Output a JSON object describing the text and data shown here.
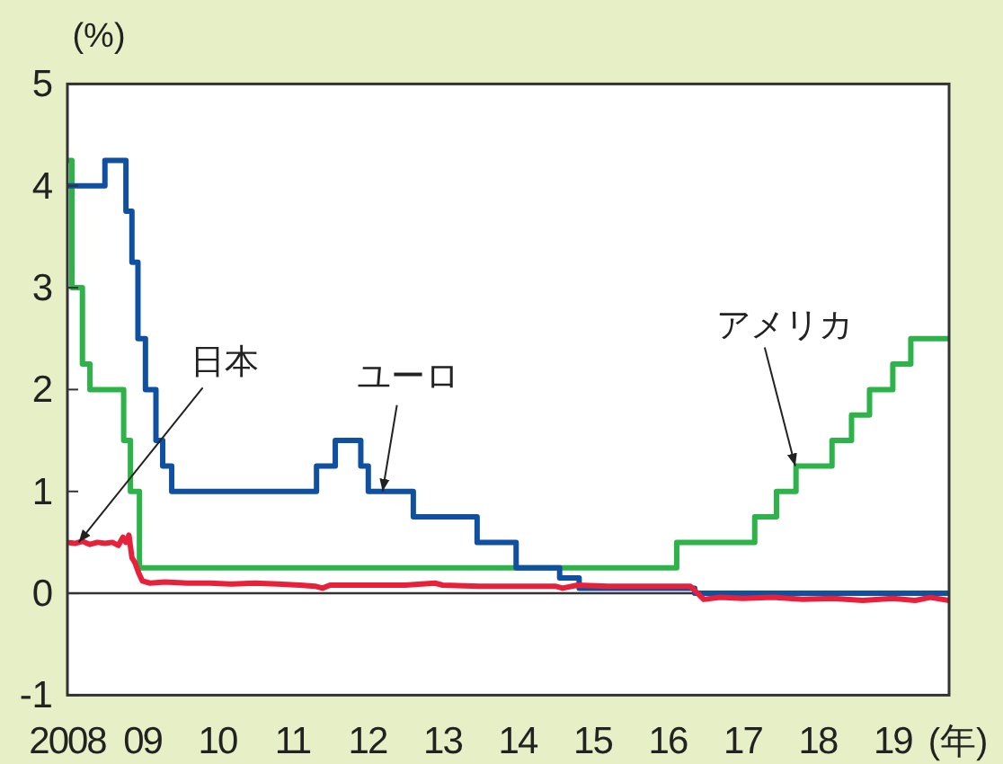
{
  "chart_data": {
    "type": "line",
    "ylabel": "(%)",
    "xlabel": "(年)",
    "xlim": [
      2008,
      2019.75
    ],
    "xticks": [
      {
        "value": 2008,
        "label": "2008"
      },
      {
        "value": 2009,
        "label": "09"
      },
      {
        "value": 2010,
        "label": "10"
      },
      {
        "value": 2011,
        "label": "11"
      },
      {
        "value": 2012,
        "label": "12"
      },
      {
        "value": 2013,
        "label": "13"
      },
      {
        "value": 2014,
        "label": "14"
      },
      {
        "value": 2015,
        "label": "15"
      },
      {
        "value": 2016,
        "label": "16"
      },
      {
        "value": 2017,
        "label": "17"
      },
      {
        "value": 2018,
        "label": "18"
      },
      {
        "value": 2019,
        "label": "19"
      }
    ],
    "ylim": [
      -1,
      5
    ],
    "yticks": [
      -1,
      0,
      1,
      2,
      3,
      4,
      5
    ],
    "grid": false,
    "ref_lines": [
      {
        "axis": "y",
        "value": 0,
        "color": "#333333"
      }
    ],
    "series": [
      {
        "type": "step",
        "color": "#2db34a",
        "x": [
          2008.0,
          2008.06,
          2008.2,
          2008.3,
          2008.75,
          2008.84,
          2008.96,
          2016.12,
          2017.16,
          2017.45,
          2017.71,
          2018.19,
          2018.45,
          2018.69,
          2019.0,
          2019.24,
          2019.75
        ],
        "values": [
          4.25,
          3.0,
          2.25,
          2.0,
          1.5,
          1.0,
          0.25,
          0.5,
          0.75,
          1.0,
          1.25,
          1.5,
          1.75,
          2.0,
          2.25,
          2.5,
          2.5
        ]
      },
      {
        "type": "step",
        "color": "#1050a0",
        "x": [
          2008.0,
          2008.5,
          2008.78,
          2008.86,
          2008.94,
          2009.04,
          2009.18,
          2009.27,
          2009.39,
          2011.32,
          2011.57,
          2011.91,
          2012.01,
          2012.61,
          2013.46,
          2013.98,
          2014.56,
          2014.82,
          2016.36,
          2019.75
        ],
        "values": [
          4.0,
          4.25,
          3.75,
          3.25,
          2.5,
          2.0,
          1.5,
          1.25,
          1.0,
          1.25,
          1.5,
          1.25,
          1.0,
          0.75,
          0.5,
          0.25,
          0.15,
          0.05,
          0.0,
          0.0
        ]
      },
      {
        "type": "line",
        "color": "#e8203a",
        "x": [
          2008.0,
          2008.1,
          2008.2,
          2008.3,
          2008.4,
          2008.5,
          2008.6,
          2008.68,
          2008.74,
          2008.78,
          2008.82,
          2008.86,
          2008.9,
          2008.95,
          2009.0,
          2009.1,
          2009.3,
          2009.6,
          2009.9,
          2010.2,
          2010.5,
          2010.8,
          2011.1,
          2011.3,
          2011.4,
          2011.5,
          2012.0,
          2012.5,
          2012.9,
          2013.0,
          2013.5,
          2014.0,
          2014.5,
          2014.6,
          2014.8,
          2015.2,
          2015.6,
          2016.0,
          2016.3,
          2016.4,
          2016.48,
          2016.7,
          2017.0,
          2017.4,
          2017.8,
          2018.2,
          2018.6,
          2019.0,
          2019.3,
          2019.5,
          2019.75
        ],
        "values": [
          0.5,
          0.49,
          0.51,
          0.48,
          0.5,
          0.49,
          0.5,
          0.47,
          0.55,
          0.5,
          0.57,
          0.35,
          0.3,
          0.2,
          0.12,
          0.1,
          0.11,
          0.1,
          0.1,
          0.09,
          0.1,
          0.09,
          0.08,
          0.07,
          0.05,
          0.08,
          0.08,
          0.08,
          0.1,
          0.08,
          0.07,
          0.07,
          0.07,
          0.05,
          0.08,
          0.07,
          0.07,
          0.07,
          0.07,
          0.0,
          -0.06,
          -0.04,
          -0.05,
          -0.04,
          -0.06,
          -0.05,
          -0.07,
          -0.05,
          -0.07,
          -0.04,
          -0.07
        ]
      }
    ],
    "annotations": [
      {
        "text": "日本",
        "x": 2008.15,
        "y": 0.5
      },
      {
        "text": "ユーロ",
        "x": 2012.2,
        "y": 1.0
      },
      {
        "text": "アメリカ",
        "x": 2017.7,
        "y": 1.25
      }
    ]
  }
}
